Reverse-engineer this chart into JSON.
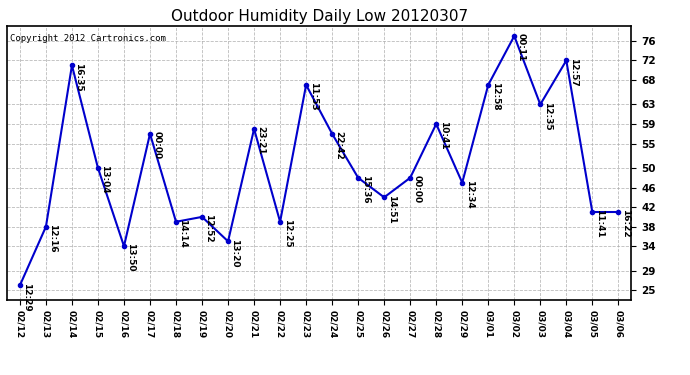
{
  "title": "Outdoor Humidity Daily Low 20120307",
  "copyright": "Copyright 2012 Cartronics.com",
  "x_labels": [
    "02/12",
    "02/13",
    "02/14",
    "02/15",
    "02/16",
    "02/17",
    "02/18",
    "02/19",
    "02/20",
    "02/21",
    "02/22",
    "02/23",
    "02/24",
    "02/25",
    "02/26",
    "02/27",
    "02/28",
    "02/29",
    "03/01",
    "03/02",
    "03/03",
    "03/04",
    "03/05",
    "03/06"
  ],
  "y_values": [
    26,
    38,
    71,
    50,
    34,
    57,
    39,
    40,
    35,
    58,
    39,
    67,
    57,
    48,
    44,
    48,
    59,
    47,
    67,
    77,
    63,
    72,
    41,
    41
  ],
  "point_labels": [
    "12:29",
    "12:16",
    "16:35",
    "13:04",
    "13:50",
    "00:00",
    "14:14",
    "12:52",
    "13:20",
    "23:21",
    "12:25",
    "11:53",
    "22:42",
    "15:36",
    "14:51",
    "00:00",
    "10:41",
    "12:34",
    "12:58",
    "00:11",
    "12:35",
    "12:57",
    "11:41",
    "16:22"
  ],
  "line_color": "#0000cc",
  "marker_color": "#0000cc",
  "bg_color": "#ffffff",
  "plot_bg_color": "#ffffff",
  "grid_color": "#aaaaaa",
  "yticks": [
    25,
    29,
    34,
    38,
    42,
    46,
    50,
    55,
    59,
    63,
    68,
    72,
    76
  ],
  "ylim": [
    23,
    79
  ],
  "title_fontsize": 11,
  "label_fontsize": 6.5,
  "copyright_fontsize": 6.5,
  "xtick_fontsize": 6.5,
  "ytick_fontsize": 7.5
}
